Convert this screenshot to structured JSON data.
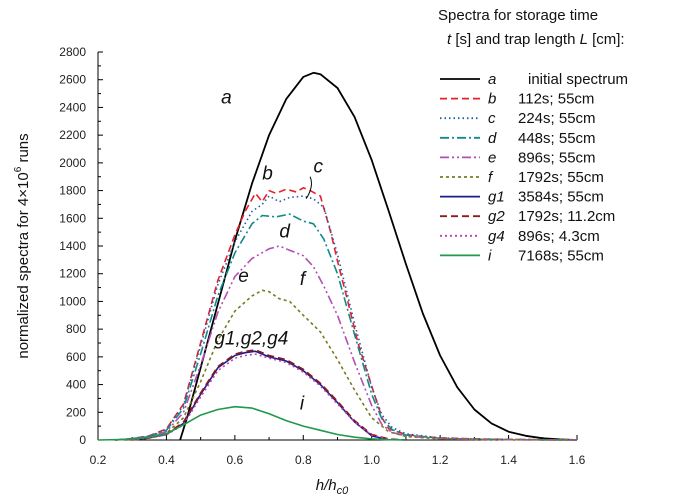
{
  "chart_data": {
    "type": "line",
    "xlabel_main": "h/h",
    "xlabel_sub": "c0",
    "ylabel_main": "normalized spectra for 4×10",
    "ylabel_sup": "6",
    "ylabel_tail": " runs",
    "xlim": [
      0.2,
      1.6
    ],
    "ylim": [
      0,
      2800
    ],
    "xticks": [
      "0.2",
      "0.4",
      "0.6",
      "0.8",
      "1.0",
      "1.2",
      "1.4",
      "1.6"
    ],
    "yticks": [
      "0",
      "200",
      "400",
      "600",
      "800",
      "1000",
      "1200",
      "1400",
      "1600",
      "1800",
      "2000",
      "2200",
      "2400",
      "2600",
      "2800"
    ],
    "legend_title_line1": "Spectra for storage time",
    "legend_title_line2_var1": "t",
    "legend_title_line2_mid": " [s] and trap length ",
    "legend_title_line2_var2": "L",
    "legend_title_line2_end": " [cm]:",
    "legend_position": "right",
    "series": [
      {
        "key": "a",
        "name": "initial spectrum",
        "color": "#000000",
        "dash": "",
        "x": [
          0.44,
          0.46,
          0.5,
          0.55,
          0.6,
          0.65,
          0.7,
          0.75,
          0.8,
          0.83,
          0.85,
          0.9,
          0.95,
          1.0,
          1.05,
          1.1,
          1.15,
          1.2,
          1.25,
          1.3,
          1.35,
          1.4,
          1.45,
          1.5,
          1.55,
          1.6
        ],
        "y": [
          0,
          160,
          520,
          980,
          1440,
          1850,
          2200,
          2460,
          2620,
          2650,
          2640,
          2540,
          2330,
          2020,
          1650,
          1270,
          910,
          610,
          380,
          220,
          120,
          60,
          30,
          12,
          4,
          0
        ]
      },
      {
        "key": "b",
        "name": "112s; 55cm",
        "color": "#e8202a",
        "dash": "7,4",
        "x": [
          0.25,
          0.3,
          0.35,
          0.4,
          0.45,
          0.5,
          0.55,
          0.6,
          0.63,
          0.66,
          0.68,
          0.7,
          0.72,
          0.75,
          0.78,
          0.8,
          0.82,
          0.85,
          0.88,
          0.9,
          0.93,
          0.96,
          1.0,
          1.03,
          1.05,
          1.1,
          1.15,
          1.2,
          1.3,
          1.4,
          1.5,
          1.6
        ],
        "y": [
          0,
          10,
          30,
          80,
          260,
          700,
          1150,
          1480,
          1650,
          1780,
          1720,
          1800,
          1780,
          1810,
          1790,
          1820,
          1800,
          1760,
          1500,
          1290,
          1000,
          700,
          390,
          160,
          80,
          40,
          25,
          15,
          8,
          4,
          2,
          0
        ]
      },
      {
        "key": "c",
        "name": "224s; 55cm",
        "color": "#1f5fa8",
        "dash": "1.5,3",
        "x": [
          0.25,
          0.3,
          0.35,
          0.4,
          0.45,
          0.5,
          0.55,
          0.6,
          0.65,
          0.68,
          0.7,
          0.73,
          0.76,
          0.8,
          0.83,
          0.86,
          0.9,
          0.95,
          1.0,
          1.03,
          1.06,
          1.1,
          1.2,
          1.3,
          1.4,
          1.5,
          1.6
        ],
        "y": [
          0,
          10,
          28,
          75,
          250,
          680,
          1120,
          1430,
          1650,
          1700,
          1760,
          1720,
          1750,
          1760,
          1740,
          1680,
          1340,
          840,
          380,
          180,
          90,
          45,
          15,
          8,
          4,
          2,
          0
        ]
      },
      {
        "key": "d",
        "name": "448s; 55cm",
        "color": "#138a8a",
        "dash": "9,3,2,3",
        "x": [
          0.25,
          0.3,
          0.35,
          0.4,
          0.45,
          0.5,
          0.55,
          0.6,
          0.65,
          0.68,
          0.72,
          0.76,
          0.8,
          0.83,
          0.86,
          0.9,
          0.95,
          1.0,
          1.03,
          1.06,
          1.1,
          1.2,
          1.3,
          1.4,
          1.5,
          1.6
        ],
        "y": [
          0,
          10,
          25,
          70,
          230,
          620,
          1040,
          1350,
          1560,
          1620,
          1610,
          1630,
          1580,
          1560,
          1450,
          1200,
          760,
          330,
          150,
          75,
          35,
          12,
          6,
          3,
          1,
          0
        ]
      },
      {
        "key": "e",
        "name": "896s; 55cm",
        "color": "#b24fb3",
        "dash": "9,3,2,3,2,3",
        "x": [
          0.25,
          0.3,
          0.35,
          0.4,
          0.45,
          0.5,
          0.55,
          0.6,
          0.65,
          0.7,
          0.73,
          0.76,
          0.8,
          0.83,
          0.86,
          0.9,
          0.95,
          1.0,
          1.03,
          1.06,
          1.1,
          1.2,
          1.3,
          1.4,
          1.5,
          1.6
        ],
        "y": [
          0,
          8,
          22,
          60,
          200,
          540,
          920,
          1180,
          1310,
          1380,
          1400,
          1370,
          1330,
          1250,
          1110,
          900,
          560,
          250,
          110,
          55,
          28,
          10,
          5,
          2,
          1,
          0
        ]
      },
      {
        "key": "f",
        "name": "1792s; 55cm",
        "color": "#7a7a22",
        "dash": "3,3",
        "x": [
          0.25,
          0.3,
          0.35,
          0.4,
          0.45,
          0.5,
          0.55,
          0.6,
          0.65,
          0.68,
          0.7,
          0.73,
          0.76,
          0.8,
          0.85,
          0.9,
          0.95,
          1.0,
          1.05,
          1.1,
          1.2,
          1.3,
          1.4,
          1.5,
          1.6
        ],
        "y": [
          0,
          6,
          18,
          50,
          160,
          420,
          720,
          930,
          1040,
          1080,
          1070,
          1020,
          1000,
          900,
          780,
          580,
          360,
          160,
          60,
          25,
          8,
          4,
          2,
          1,
          0
        ]
      },
      {
        "key": "g1",
        "name": "3584s; 55cm",
        "color": "#1b1f8a",
        "dash": "",
        "x": [
          0.3,
          0.35,
          0.4,
          0.45,
          0.5,
          0.55,
          0.6,
          0.63,
          0.66,
          0.7,
          0.75,
          0.8,
          0.85,
          0.9,
          0.95,
          1.0,
          1.05
        ],
        "y": [
          0,
          15,
          40,
          120,
          330,
          520,
          610,
          630,
          640,
          600,
          570,
          500,
          400,
          270,
          130,
          30,
          0
        ]
      },
      {
        "key": "g2",
        "name": "1792s; 11.2cm",
        "color": "#8b1a1a",
        "dash": "7,4",
        "x": [
          0.3,
          0.35,
          0.4,
          0.45,
          0.5,
          0.55,
          0.6,
          0.63,
          0.66,
          0.7,
          0.75,
          0.8,
          0.85,
          0.9,
          0.95,
          1.0,
          1.05,
          1.1
        ],
        "y": [
          0,
          15,
          42,
          130,
          340,
          530,
          620,
          640,
          650,
          610,
          580,
          510,
          410,
          280,
          140,
          40,
          8,
          0
        ]
      },
      {
        "key": "g4",
        "name": "896s; 4.3cm",
        "color": "#c03fb0",
        "dash": "2,3",
        "x": [
          0.3,
          0.35,
          0.4,
          0.45,
          0.5,
          0.55,
          0.6,
          0.63,
          0.66,
          0.7,
          0.75,
          0.8,
          0.85,
          0.9,
          0.95,
          1.0,
          1.05,
          1.1
        ],
        "y": [
          0,
          15,
          38,
          110,
          310,
          500,
          590,
          610,
          620,
          590,
          560,
          490,
          390,
          260,
          130,
          35,
          6,
          0
        ]
      },
      {
        "key": "i",
        "name": "7168s; 55cm",
        "color": "#1f9a4a",
        "dash": "",
        "x": [
          0.2,
          0.3,
          0.35,
          0.4,
          0.45,
          0.5,
          0.55,
          0.6,
          0.65,
          0.7,
          0.75,
          0.8,
          0.85,
          0.9,
          0.95,
          1.0,
          1.05,
          1.1
        ],
        "y": [
          0,
          5,
          20,
          45,
          110,
          180,
          220,
          240,
          230,
          190,
          140,
          100,
          70,
          40,
          20,
          8,
          2,
          0
        ]
      }
    ],
    "curve_labels": [
      {
        "text": "a",
        "x": 0.56,
        "y": 2430
      },
      {
        "text": "b",
        "x": 0.68,
        "y": 1880
      },
      {
        "text": "c",
        "x": 0.83,
        "y": 1930
      },
      {
        "text": "d",
        "x": 0.73,
        "y": 1460
      },
      {
        "text": "e",
        "x": 0.61,
        "y": 1140
      },
      {
        "text": "f",
        "x": 0.79,
        "y": 1120
      },
      {
        "text": "g1,g2,g4",
        "x": 0.54,
        "y": 690
      },
      {
        "text": "i",
        "x": 0.79,
        "y": 220
      }
    ]
  }
}
